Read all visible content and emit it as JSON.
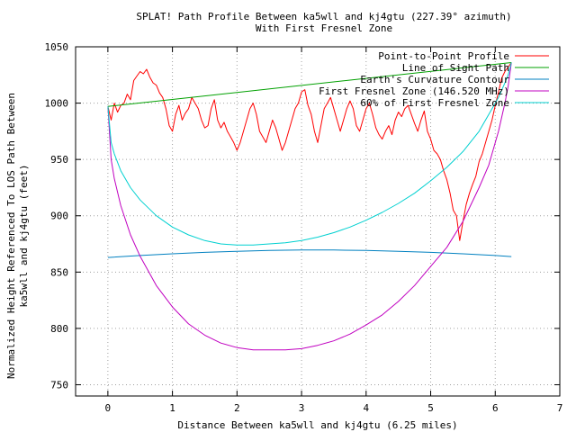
{
  "chart_data": {
    "type": "line",
    "title": "SPLAT! Path Profile Between ka5wll and kj4gtu (227.39° azimuth)",
    "subtitle": "With First Fresnel Zone",
    "xlabel": "Distance Between ka5wll and kj4gtu (6.25 miles)",
    "ylabel_lines": [
      "Normalized Height Referenced To LOS Path Between",
      "ka5wll and kj4gtu (feet)"
    ],
    "xlim": [
      -0.5,
      7
    ],
    "ylim": [
      740,
      1050
    ],
    "xticks": [
      0,
      1,
      2,
      3,
      4,
      5,
      6,
      7
    ],
    "yticks": [
      750,
      800,
      850,
      900,
      950,
      1000,
      1050
    ],
    "grid": true,
    "legend_position": "top-right",
    "series": [
      {
        "name": "Point-to-Point Profile",
        "color": "#ff0000",
        "x": [
          0,
          0.05,
          0.1,
          0.15,
          0.2,
          0.25,
          0.3,
          0.35,
          0.4,
          0.45,
          0.5,
          0.55,
          0.6,
          0.65,
          0.7,
          0.75,
          0.8,
          0.85,
          0.9,
          0.95,
          1.0,
          1.05,
          1.1,
          1.15,
          1.2,
          1.25,
          1.3,
          1.35,
          1.4,
          1.45,
          1.5,
          1.55,
          1.6,
          1.65,
          1.7,
          1.75,
          1.8,
          1.85,
          1.9,
          1.95,
          2.0,
          2.05,
          2.1,
          2.15,
          2.2,
          2.25,
          2.3,
          2.35,
          2.4,
          2.45,
          2.5,
          2.55,
          2.6,
          2.65,
          2.7,
          2.75,
          2.8,
          2.85,
          2.9,
          2.95,
          3.0,
          3.05,
          3.1,
          3.15,
          3.2,
          3.25,
          3.3,
          3.35,
          3.4,
          3.45,
          3.5,
          3.55,
          3.6,
          3.65,
          3.7,
          3.75,
          3.8,
          3.85,
          3.9,
          3.95,
          4.0,
          4.05,
          4.1,
          4.15,
          4.2,
          4.25,
          4.3,
          4.35,
          4.4,
          4.45,
          4.5,
          4.55,
          4.6,
          4.65,
          4.7,
          4.75,
          4.8,
          4.85,
          4.9,
          4.95,
          5.0,
          5.05,
          5.1,
          5.15,
          5.2,
          5.25,
          5.3,
          5.35,
          5.4,
          5.45,
          5.5,
          5.55,
          5.6,
          5.65,
          5.7,
          5.75,
          5.8,
          5.85,
          5.9,
          5.95,
          6.0,
          6.05,
          6.1,
          6.15,
          6.2,
          6.25
        ],
        "values": [
          997,
          985,
          1000,
          992,
          998,
          1000,
          1008,
          1003,
          1020,
          1024,
          1028,
          1026,
          1030,
          1023,
          1018,
          1016,
          1009,
          1005,
          995,
          980,
          975,
          990,
          998,
          985,
          991,
          995,
          1005,
          1000,
          995,
          985,
          978,
          980,
          995,
          1003,
          985,
          978,
          983,
          975,
          970,
          965,
          958,
          965,
          975,
          985,
          995,
          1000,
          990,
          975,
          970,
          965,
          975,
          985,
          978,
          968,
          958,
          965,
          975,
          985,
          995,
          1000,
          1010,
          1012,
          998,
          990,
          975,
          965,
          980,
          995,
          1000,
          1005,
          995,
          985,
          975,
          985,
          995,
          1002,
          995,
          980,
          975,
          985,
          995,
          1000,
          990,
          978,
          972,
          968,
          975,
          980,
          972,
          985,
          992,
          988,
          995,
          998,
          990,
          982,
          975,
          985,
          993,
          975,
          968,
          958,
          955,
          950,
          940,
          932,
          920,
          905,
          900,
          878,
          895,
          910,
          920,
          928,
          935,
          948,
          955,
          965,
          975,
          985,
          998,
          1010,
          1022,
          1028,
          1032,
          1036
        ]
      },
      {
        "name": "Line of Sight Path",
        "color": "#00a000",
        "x": [
          0,
          6.25
        ],
        "values": [
          997,
          1036
        ]
      },
      {
        "name": "Earth's Curvature Contour",
        "color": "#0080c0",
        "x": [
          0,
          0.5,
          1,
          1.5,
          2,
          2.5,
          3,
          3.5,
          4,
          4.5,
          5,
          5.5,
          6,
          6.25
        ],
        "values": [
          863,
          864.7,
          866.2,
          867.5,
          868.5,
          869.2,
          869.6,
          869.6,
          869.2,
          868.5,
          867.5,
          866.2,
          864.7,
          863.8
        ]
      },
      {
        "name": "First Fresnel Zone (146.520 MHz)",
        "color": "#c000c0",
        "x": [
          0,
          0.05,
          0.1,
          0.2,
          0.35,
          0.5,
          0.75,
          1,
          1.25,
          1.5,
          1.75,
          2,
          2.25,
          2.5,
          2.75,
          3,
          3.25,
          3.5,
          3.75,
          4,
          4.25,
          4.5,
          4.75,
          5,
          5.25,
          5.5,
          5.75,
          5.9,
          6.05,
          6.15,
          6.2,
          6.25
        ],
        "values": [
          997,
          950,
          933,
          909,
          883,
          864,
          838,
          819,
          804,
          794,
          787,
          783,
          781,
          781,
          781,
          782,
          785,
          789,
          795,
          803,
          812,
          824,
          838,
          855,
          872,
          895,
          925,
          945,
          975,
          1000,
          1015,
          1036
        ]
      },
      {
        "name": "60% of First Fresnel Zone",
        "color": "#00d0d0",
        "x": [
          0,
          0.05,
          0.1,
          0.2,
          0.35,
          0.5,
          0.75,
          1,
          1.25,
          1.5,
          1.75,
          2,
          2.25,
          2.5,
          2.75,
          3,
          3.25,
          3.5,
          3.75,
          4,
          4.25,
          4.5,
          4.75,
          5,
          5.25,
          5.5,
          5.75,
          5.9,
          6.05,
          6.15,
          6.2,
          6.25
        ],
        "values": [
          997,
          965,
          955,
          940,
          925,
          914,
          900,
          890,
          883,
          878,
          875,
          874,
          874,
          875,
          876,
          878,
          881,
          885,
          890,
          896,
          903,
          911,
          920,
          931,
          943,
          957,
          975,
          990,
          1005,
          1018,
          1025,
          1036
        ]
      }
    ]
  }
}
